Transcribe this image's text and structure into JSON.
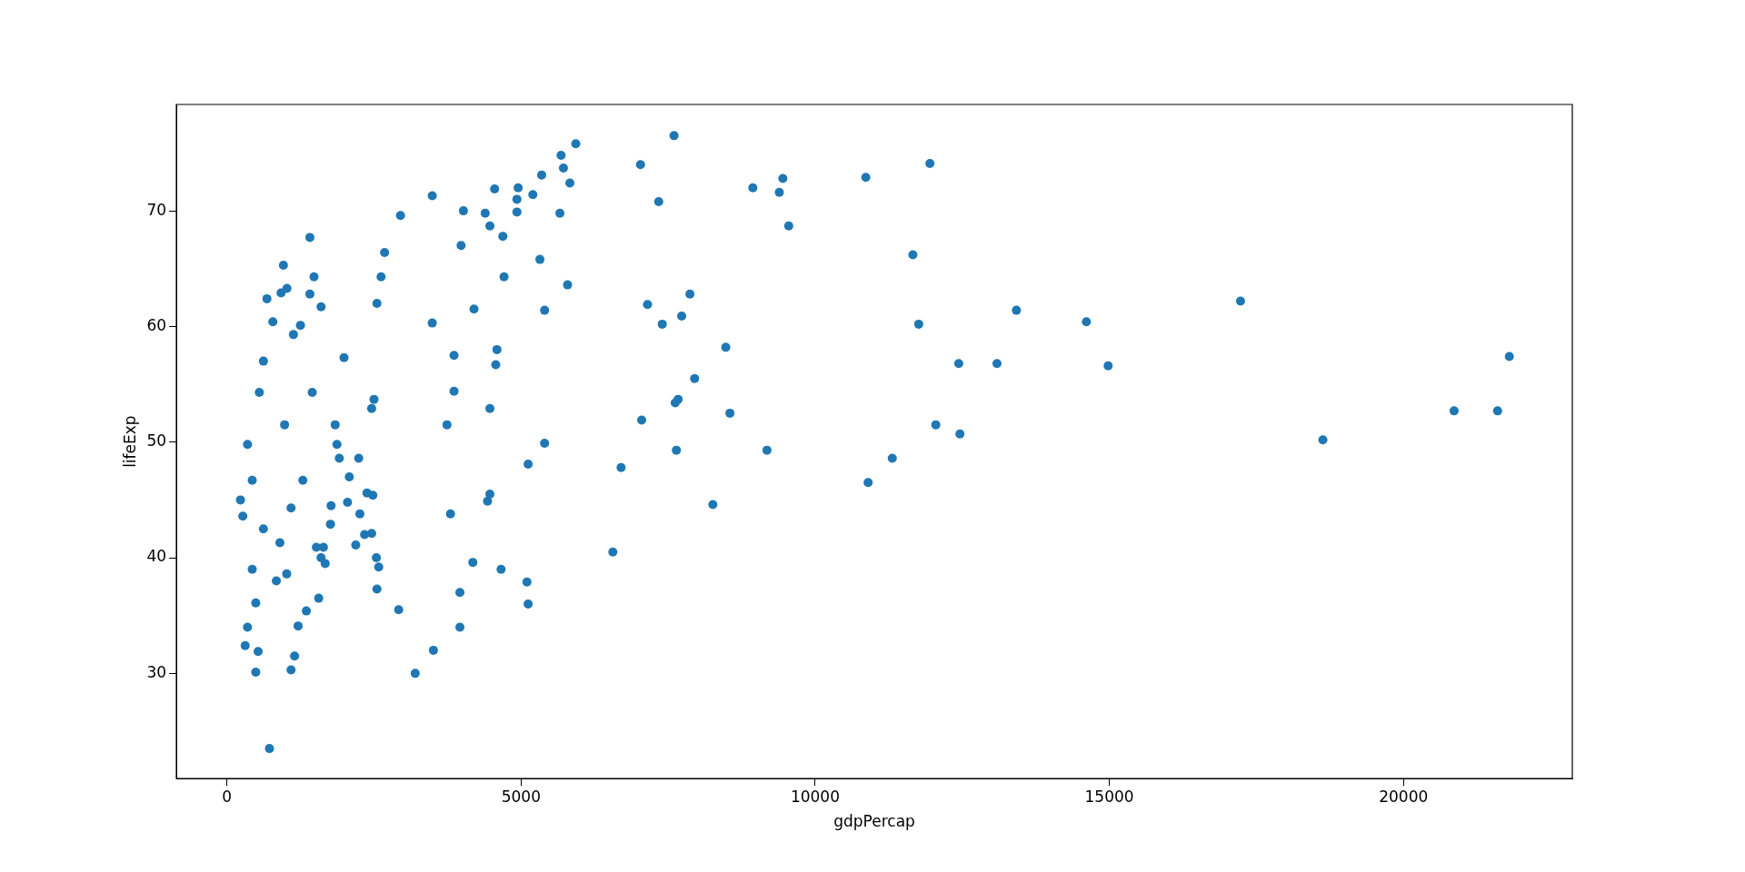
{
  "chart_data": {
    "type": "scatter",
    "xlabel": "gdpPercap",
    "ylabel": "lifeExp",
    "color": "#1f77b4",
    "marker": "circle",
    "xlim": [
      -860,
      22870
    ],
    "ylim": [
      20.9,
      79.2
    ],
    "xticks": [
      0,
      5000,
      10000,
      15000,
      20000
    ],
    "yticks": [
      30,
      40,
      50,
      60,
      70
    ],
    "x": [
      723,
      20860,
      21600,
      21800,
      18630,
      17230,
      14610,
      14980,
      13420,
      13090,
      12440,
      12460,
      12050,
      11950,
      11760,
      11660,
      11310,
      10900,
      10860,
      9550,
      9450,
      9390,
      8940,
      9180,
      8550,
      8480,
      8260,
      7950,
      7870,
      7730,
      7670,
      7620,
      7640,
      7600,
      7400,
      7340,
      7150,
      7030,
      7050,
      6700,
      6560,
      5930,
      5830,
      5790,
      5720,
      5680,
      5660,
      5400,
      5400,
      5320,
      5350,
      5200,
      5120,
      5120,
      5100,
      4950,
      4930,
      4930,
      4710,
      4690,
      4590,
      4570,
      4660,
      4550,
      4470,
      4470,
      4470,
      4430,
      4390,
      4200,
      4180,
      4020,
      3980,
      3960,
      3960,
      3860,
      3860,
      3800,
      3740,
      3490,
      3490,
      3510,
      3200,
      2950,
      2920,
      2680,
      2620,
      2550,
      2500,
      2460,
      2480,
      2550,
      2340,
      2240,
      2080,
      1870,
      1770,
      1670,
      1640,
      1480,
      1410,
      1250,
      1020,
      920,
      1016,
      230,
      270,
      310,
      350,
      350,
      430,
      430,
      490,
      530,
      490,
      550,
      620,
      680,
      620,
      780,
      840,
      900,
      960,
      980,
      1090,
      1090,
      1150,
      1130,
      1210,
      1290,
      1350,
      1410,
      1450,
      1520,
      1560,
      1600,
      1600,
      1760,
      1840,
      1910,
      1990,
      2050,
      2190,
      2260,
      2380,
      2460,
      2540,
      2580
    ],
    "values": [
      23.5,
      52.7,
      52.7,
      57.4,
      50.2,
      62.2,
      60.4,
      56.6,
      61.4,
      56.8,
      56.8,
      50.7,
      51.5,
      74.1,
      60.2,
      66.2,
      48.6,
      46.5,
      72.9,
      68.7,
      72.8,
      71.6,
      72.0,
      49.3,
      52.5,
      58.2,
      44.6,
      55.5,
      62.8,
      60.9,
      53.7,
      53.4,
      49.3,
      76.5,
      60.2,
      70.8,
      61.9,
      74.0,
      51.9,
      47.8,
      40.5,
      75.8,
      72.4,
      63.6,
      73.7,
      74.8,
      69.8,
      61.4,
      49.9,
      65.8,
      73.1,
      71.4,
      48.1,
      36.0,
      37.9,
      72.0,
      71.0,
      69.9,
      64.3,
      67.8,
      58.0,
      56.7,
      39.0,
      71.9,
      68.7,
      52.9,
      45.5,
      44.9,
      69.8,
      61.5,
      39.6,
      70.0,
      67.0,
      37.0,
      34.0,
      57.5,
      54.4,
      43.8,
      51.5,
      71.3,
      60.3,
      32.0,
      30.0,
      69.6,
      35.5,
      66.4,
      64.3,
      62.0,
      53.7,
      52.9,
      45.4,
      37.3,
      42.0,
      48.6,
      47.0,
      49.8,
      44.5,
      39.5,
      40.9,
      64.3,
      67.7,
      60.1,
      63.3,
      62.9,
      38.6,
      45.0,
      43.6,
      32.4,
      34.0,
      49.8,
      46.7,
      39.0,
      30.1,
      31.9,
      36.1,
      54.3,
      57.0,
      62.4,
      42.5,
      60.4,
      38.0,
      41.3,
      65.3,
      51.5,
      30.3,
      44.3,
      31.5,
      59.3,
      34.1,
      46.7,
      35.4,
      62.8,
      54.3,
      40.9,
      36.5,
      61.7,
      40.0,
      42.9,
      51.5,
      48.6,
      57.3,
      44.8,
      41.1,
      43.8,
      45.6,
      42.1,
      40.0,
      39.2
    ]
  }
}
